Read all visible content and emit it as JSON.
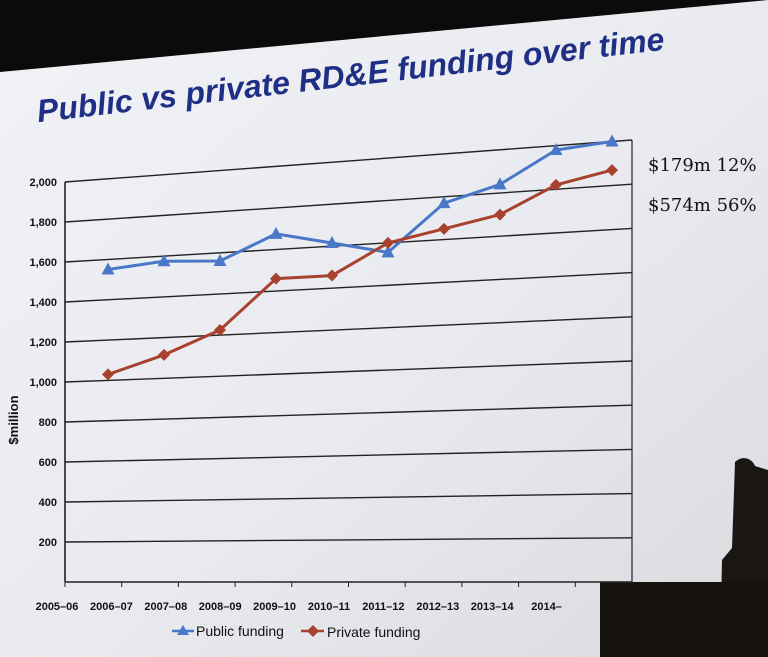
{
  "slide": {
    "title": "Public vs private RD&E funding over time"
  },
  "chart_data": {
    "type": "line",
    "title": "Public vs private RD&E funding over time",
    "xlabel": "",
    "ylabel": "$million",
    "ylim": [
      0,
      2000
    ],
    "yticks": [
      "200",
      "400",
      "600",
      "800",
      "1,000",
      "1,200",
      "1,400",
      "1,600",
      "1,800",
      "2,000"
    ],
    "categories": [
      "2005–06",
      "2006–07",
      "2007–08",
      "2008–09",
      "2009–10",
      "2010–11",
      "2011–12",
      "2012–13",
      "2013–14",
      "2014–"
    ],
    "grid": true,
    "legend_position": "bottom",
    "series": [
      {
        "name": "Public funding",
        "color": "#4a78c9",
        "marker": "triangle",
        "values": [
          1550,
          1575,
          1560,
          1675,
          1615,
          1555,
          1770,
          1840,
          1980,
          2000
        ]
      },
      {
        "name": "Private funding",
        "color": "#a8412e",
        "marker": "diamond",
        "values": [
          1030,
          1115,
          1225,
          1460,
          1460,
          1600,
          1650,
          1700,
          1820,
          1870
        ]
      }
    ],
    "annotations": [
      {
        "text": "$179m 12%",
        "series": "Public funding"
      },
      {
        "text": "$574m 56%",
        "series": "Private funding"
      }
    ]
  }
}
